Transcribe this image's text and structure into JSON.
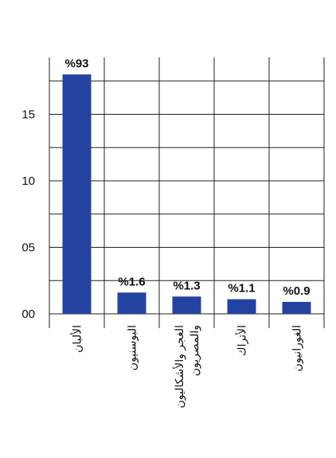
{
  "chart_data": {
    "type": "bar",
    "categories": [
      "الألبان",
      "البوسنيون",
      "الغجر والأشكاليون والمصريون",
      "الأتراك",
      "الغورانيون"
    ],
    "category_lines": [
      [
        "الألبان"
      ],
      [
        "البوسنيون"
      ],
      [
        "الغجر والأشكاليون",
        "والمصريون"
      ],
      [
        "الأتراك"
      ],
      [
        "الغورانيون"
      ]
    ],
    "values": [
      93,
      1.6,
      1.3,
      1.1,
      0.9
    ],
    "value_labels": [
      "%93",
      "%1.6",
      "%1.3",
      "%1.1",
      "%0.9"
    ],
    "ytick_values": [
      0,
      5,
      10,
      15
    ],
    "ytick_labels": [
      "00",
      "05",
      "10",
      "15"
    ],
    "ylim": [
      0,
      18
    ],
    "bar_color": "#2442a0",
    "grid": true,
    "title": "",
    "xlabel": "",
    "ylabel": ""
  }
}
